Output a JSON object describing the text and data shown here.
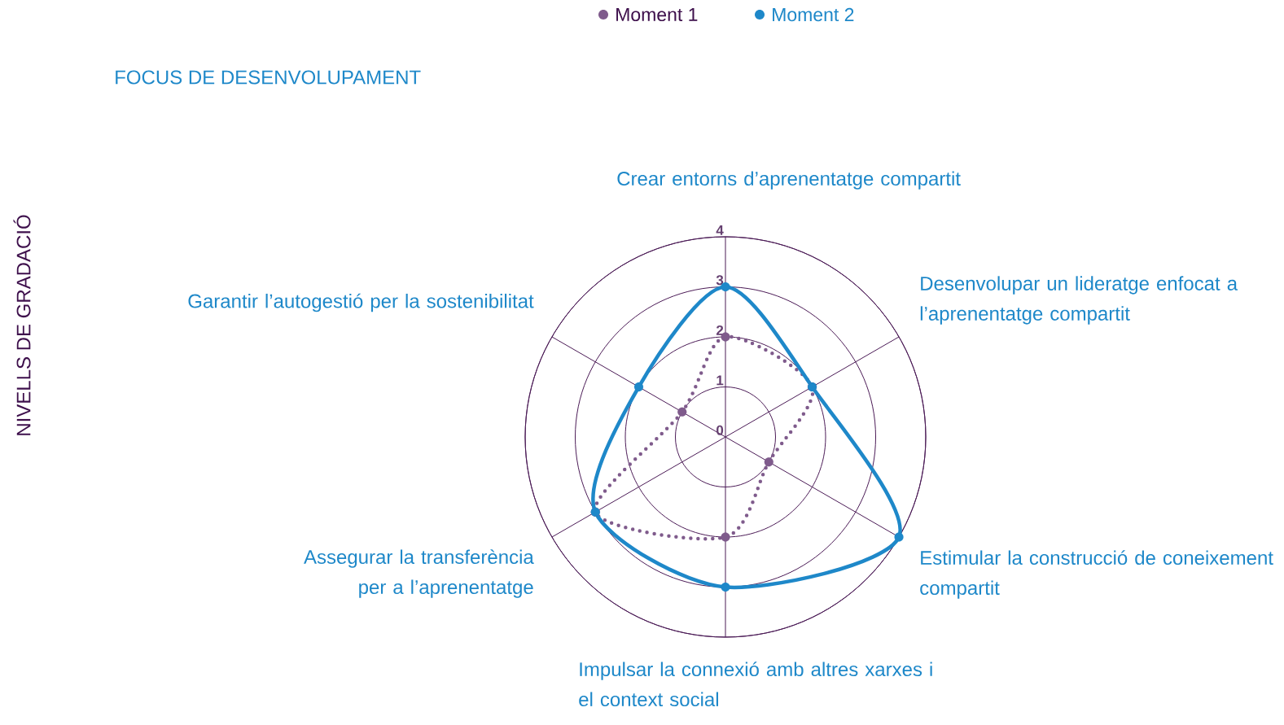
{
  "chart_data": {
    "type": "radar",
    "title": "FOCUS DE DESENVOLUPAMENT",
    "ylabel": "NIVELLS DE GRADACIÓ",
    "categories": [
      "Crear entorns d’aprenentatge compartit",
      "Desenvolupar un lideratge enfocat a l’aprenentatge compartit",
      "Estimular la construcció de coneixement compartit",
      "Impulsar la connexió amb altres xarxes i el context social",
      "Assegurar la transferència per a l’aprenentatge",
      "Garantir l’autogestió per la sostenibilitat"
    ],
    "series": [
      {
        "name": "Moment 1",
        "color": "#7f5b8c",
        "line_style": "dotted",
        "values": [
          2,
          2,
          1,
          2,
          3,
          1
        ]
      },
      {
        "name": "Moment 2",
        "color": "#1e88c9",
        "line_style": "solid",
        "values": [
          3,
          2,
          4,
          3,
          3,
          2
        ]
      }
    ],
    "ylim": [
      0,
      4
    ],
    "yticks": [
      0,
      1,
      2,
      3,
      4
    ],
    "grid": true,
    "legend": "top",
    "marker": "circle"
  }
}
